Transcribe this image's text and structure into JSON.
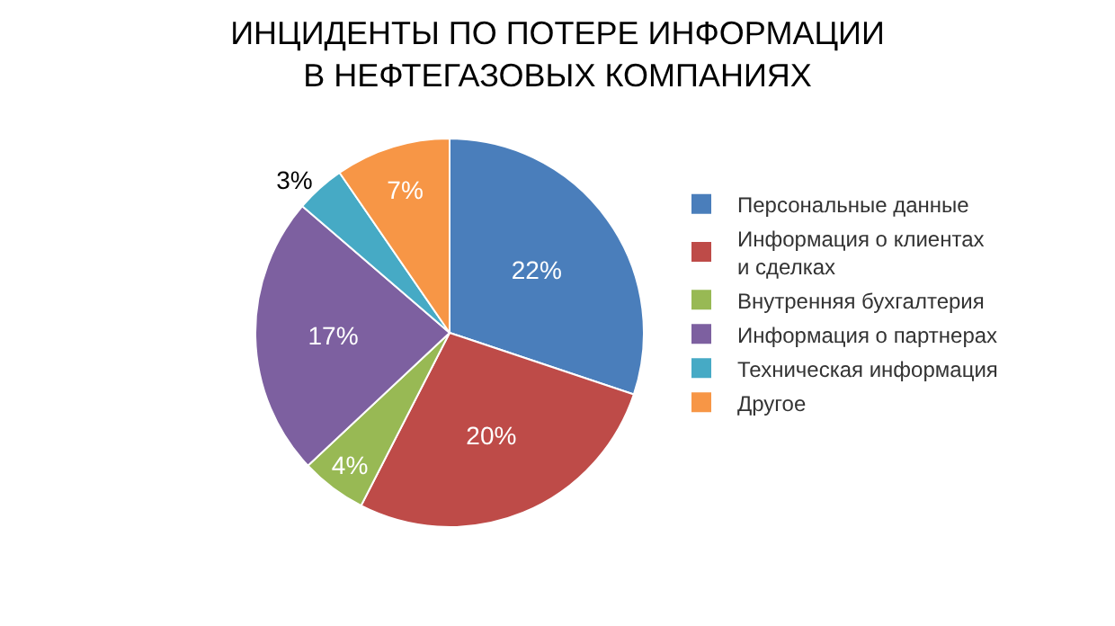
{
  "chart_data": {
    "type": "pie",
    "title": "ИНЦИДЕНТЫ ПО ПОТЕРЕ ИНФОРМАЦИИ\nВ НЕФТЕГАЗОВЫХ КОМПАНИЯХ",
    "categories": [
      "Персональные данные",
      "Информация о клиентах и сделках",
      "Внутренняя бухгалтерия",
      "Информация о партнерах",
      "Техническая информация",
      "Другое"
    ],
    "values": [
      22,
      20,
      4,
      17,
      3,
      7
    ],
    "value_labels": [
      "22%",
      "20%",
      "4%",
      "17%",
      "3%",
      "7%"
    ],
    "colors": [
      "#4a7ebb",
      "#be4b48",
      "#98b954",
      "#7d60a0",
      "#46aac5",
      "#f79646"
    ],
    "legend": "right"
  }
}
